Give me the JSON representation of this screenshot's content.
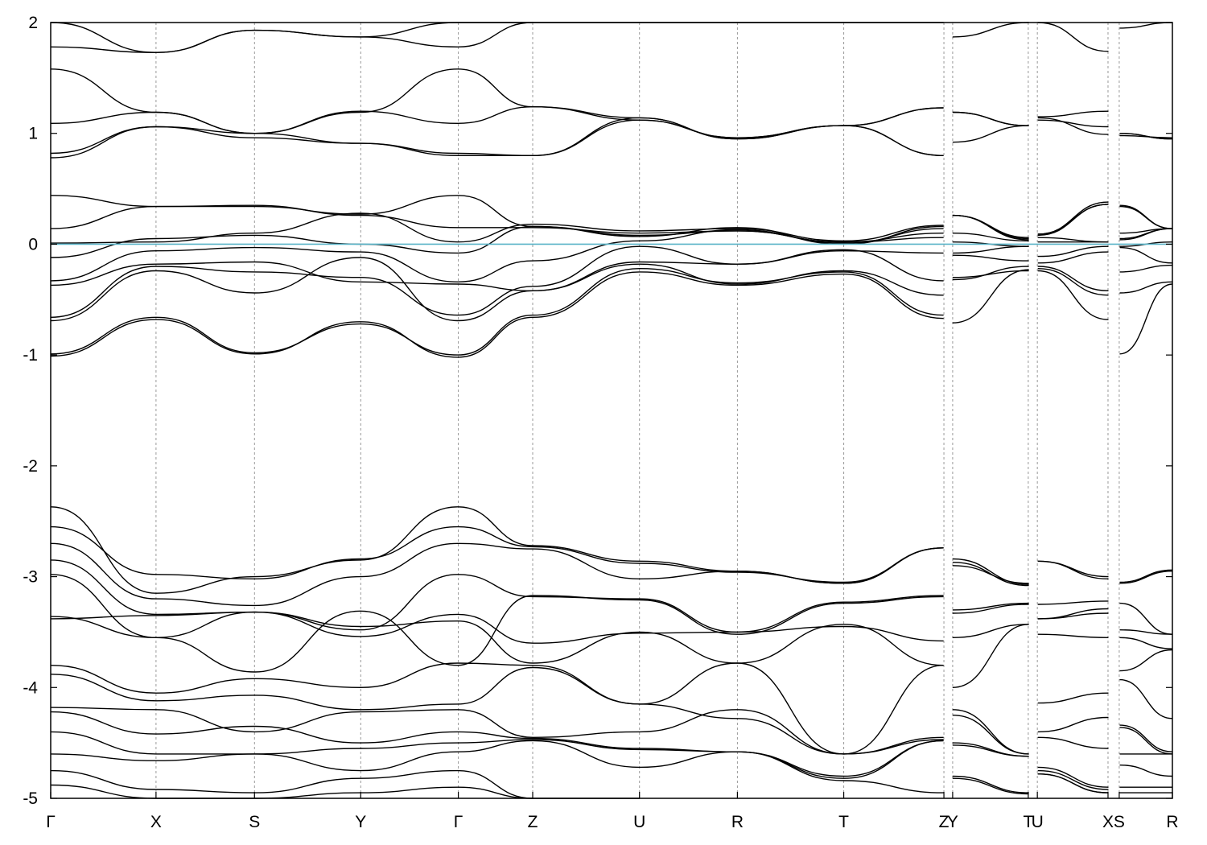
{
  "chart_data": {
    "type": "line",
    "title": "",
    "xlabel": "",
    "ylabel": "",
    "ylim": [
      -5,
      2
    ],
    "y_ticks": [
      "2",
      "1",
      "0",
      "-1",
      "-2",
      "-3",
      "-4",
      "-5"
    ],
    "k_path_labels": [
      "Γ",
      "X",
      "S",
      "Y",
      "Γ",
      "Z",
      "U",
      "R",
      "T",
      "Z",
      "Y",
      "T",
      "U",
      "X",
      "S",
      "R"
    ],
    "k_positions": [
      0,
      0.0939,
      0.1817,
      0.2764,
      0.3634,
      0.4297,
      0.5249,
      0.6122,
      0.707,
      0.7963,
      0.8041,
      0.8715,
      0.8796,
      0.9426,
      0.9526,
      1.0
    ],
    "discontinuities": [
      0.7963,
      0.8715,
      0.9426
    ],
    "fermi_level": 0,
    "fermi_color": "#5ab4c8",
    "grid": "vertical dashed at high-symmetry points",
    "series": [
      {
        "x": [
          0,
          0.094,
          0.182,
          0.276,
          0.363,
          0.43,
          0.525,
          0.612,
          0.707,
          0.796,
          0.804,
          0.872,
          0.88,
          0.943,
          0.953,
          1
        ],
        "values": [
          -1.01,
          -0.68,
          -0.99,
          -0.7,
          -1.02,
          -0.66,
          -0.25,
          -0.37,
          -0.27,
          -0.67,
          -0.71,
          -0.23,
          -0.24,
          -0.68,
          -0.99,
          -0.36
        ]
      },
      {
        "x": [
          0,
          0.094,
          0.182,
          0.276,
          0.363,
          0.43,
          0.525,
          0.612,
          0.707,
          0.796,
          0.804,
          0.872,
          0.88,
          0.943,
          0.953,
          1
        ],
        "values": [
          -0.99,
          -0.66,
          -0.98,
          -0.72,
          -1.0,
          -0.64,
          -0.22,
          -0.35,
          -0.25,
          -0.64,
          -0.32,
          -0.2,
          -0.22,
          -0.46,
          -0.44,
          -0.34
        ]
      },
      {
        "x": [
          0,
          0.094,
          0.182,
          0.276,
          0.363,
          0.43,
          0.525,
          0.612,
          0.707,
          0.796,
          0.804,
          0.872,
          0.88,
          0.943,
          0.953,
          1
        ],
        "values": [
          -0.69,
          -0.24,
          -0.44,
          -0.12,
          -0.69,
          -0.42,
          -0.18,
          -0.36,
          -0.24,
          -0.46,
          -0.3,
          -0.24,
          -0.2,
          -0.42,
          -0.25,
          -0.19
        ]
      },
      {
        "x": [
          0,
          0.094,
          0.182,
          0.276,
          0.363,
          0.43,
          0.525,
          0.612,
          0.707,
          0.796,
          0.804,
          0.872,
          0.88,
          0.943,
          0.953,
          1
        ],
        "values": [
          -0.66,
          -0.2,
          -0.25,
          -0.3,
          -0.64,
          -0.38,
          -0.02,
          -0.18,
          -0.05,
          -0.33,
          -0.1,
          -0.15,
          -0.17,
          -0.07,
          -0.03,
          -0.17
        ]
      },
      {
        "x": [
          0,
          0.094,
          0.182,
          0.276,
          0.363,
          0.43,
          0.525,
          0.612,
          0.707,
          0.796,
          0.804,
          0.872,
          0.88,
          0.943,
          0.953,
          1
        ],
        "values": [
          -0.37,
          -0.18,
          -0.16,
          -0.34,
          -0.36,
          -0.42,
          -0.16,
          -0.18,
          -0.06,
          -0.08,
          -0.08,
          -0.02,
          -0.11,
          -0.02,
          -0.02,
          0.02
        ]
      },
      {
        "x": [
          0,
          0.094,
          0.182,
          0.276,
          0.363,
          0.43,
          0.525,
          0.612,
          0.707,
          0.796,
          0.804,
          0.872,
          0.88,
          0.943,
          0.953,
          1
        ],
        "values": [
          -0.33,
          -0.06,
          -0.03,
          -0.07,
          -0.34,
          -0.15,
          0.03,
          0.13,
          0.01,
          0.14,
          0.02,
          -0.02,
          0.02,
          0.02,
          0.04,
          0.14
        ]
      },
      {
        "x": [
          0,
          0.094,
          0.182,
          0.276,
          0.363,
          0.43,
          0.525,
          0.612,
          0.707,
          0.796,
          0.804,
          0.872,
          0.88,
          0.943,
          0.953,
          1
        ],
        "values": [
          -0.12,
          0.05,
          0.08,
          0.0,
          -0.08,
          0.16,
          0.07,
          0.15,
          0.0,
          0.16,
          0.26,
          0.06,
          0.09,
          0.36,
          0.1,
          0.14
        ]
      },
      {
        "x": [
          0,
          0.094,
          0.182,
          0.276,
          0.363,
          0.43,
          0.525,
          0.612,
          0.707,
          0.796,
          0.804,
          0.872,
          0.88,
          0.943,
          0.953,
          1
        ],
        "values": [
          0.01,
          0.02,
          0.1,
          0.28,
          0.02,
          0.18,
          0.12,
          0.14,
          0.03,
          0.17,
          0.26,
          0.05,
          0.09,
          0.38,
          0.34,
          0.14
        ]
      },
      {
        "x": [
          0,
          0.094,
          0.182,
          0.276,
          0.363,
          0.43,
          0.525,
          0.612,
          0.707,
          0.796,
          0.804,
          0.872,
          0.88,
          0.943,
          0.953,
          1
        ],
        "values": [
          0.14,
          0.34,
          0.35,
          0.26,
          0.15,
          0.15,
          0.1,
          0.12,
          0.02,
          0.06,
          0.26,
          0.04,
          0.08,
          0.36,
          0.35,
          0.14
        ]
      },
      {
        "x": [
          0,
          0.094,
          0.182,
          0.276,
          0.363,
          0.43,
          0.525,
          0.612,
          0.707,
          0.796,
          0.804,
          0.872,
          0.88,
          0.943,
          0.953,
          1
        ],
        "values": [
          0.44,
          0.34,
          0.34,
          0.27,
          0.44,
          0.16,
          0.08,
          0.12,
          0.02,
          0.1,
          0.1,
          0.03,
          0.06,
          0.02,
          0.05,
          0.14
        ]
      },
      {
        "x": [
          0,
          0.094,
          0.182,
          0.276,
          0.363,
          0.43,
          0.525,
          0.612,
          0.707,
          0.796,
          0.804,
          0.872,
          0.88,
          0.943,
          0.953,
          1
        ],
        "values": [
          0.78,
          1.06,
          1.0,
          0.91,
          0.8,
          0.8,
          1.14,
          0.95,
          1.07,
          0.8,
          0.92,
          1.07,
          1.14,
          0.99,
          1.0,
          0.95
        ]
      },
      {
        "x": [
          0,
          0.094,
          0.182,
          0.276,
          0.363,
          0.43,
          0.525,
          0.612,
          0.707,
          0.796,
          0.804,
          0.872,
          0.88,
          0.943,
          0.953,
          1
        ],
        "values": [
          0.82,
          1.06,
          0.96,
          0.91,
          0.82,
          0.8,
          1.12,
          0.96,
          1.07,
          0.8,
          1.19,
          1.07,
          1.15,
          1.2,
          0.98,
          0.96
        ]
      },
      {
        "x": [
          0,
          0.094,
          0.182,
          0.276,
          0.363,
          0.43,
          0.525,
          0.612,
          0.707,
          0.796,
          0.804,
          0.872,
          0.88,
          0.943,
          0.953,
          1
        ],
        "values": [
          1.09,
          1.19,
          1.0,
          1.2,
          1.09,
          1.24,
          1.14,
          0.95,
          1.07,
          1.23,
          1.19,
          1.07,
          1.12,
          1.06,
          1.0,
          0.95
        ]
      },
      {
        "x": [
          0,
          0.094,
          0.182,
          0.276,
          0.363,
          0.43,
          0.525,
          0.612,
          0.707,
          0.796,
          0.804,
          0.872,
          0.88,
          0.943,
          0.953,
          1
        ],
        "values": [
          1.58,
          1.19,
          1.0,
          1.19,
          1.58,
          1.24,
          1.12,
          0.96,
          1.07,
          1.23,
          1.87,
          2.0,
          2.0,
          1.74,
          1.95,
          2.0
        ]
      },
      {
        "x": [
          0,
          0.094,
          0.182,
          0.276,
          0.363,
          0.43,
          0.525,
          0.612,
          0.707,
          0.796
        ],
        "values": [
          1.78,
          1.73,
          1.93,
          1.87,
          1.78,
          2.0,
          2.0,
          2.0,
          2.0,
          2.0
        ]
      },
      {
        "x": [
          0,
          0.094,
          0.182,
          0.276,
          0.363,
          0.43
        ],
        "values": [
          2.0,
          1.73,
          1.93,
          1.87,
          2.0,
          2.0
        ]
      },
      {
        "x": [
          0,
          0.094,
          0.182,
          0.276,
          0.363,
          0.43,
          0.525,
          0.612,
          0.707,
          0.796,
          0.804,
          0.872,
          0.88,
          0.943,
          0.953,
          1
        ],
        "values": [
          -2.37,
          -3.15,
          -3.0,
          -2.85,
          -2.37,
          -2.72,
          -2.86,
          -2.95,
          -3.06,
          -2.74,
          -2.84,
          -3.07,
          -2.86,
          -3.0,
          -3.05,
          -2.94
        ]
      },
      {
        "x": [
          0,
          0.094,
          0.182,
          0.276,
          0.363,
          0.43,
          0.525,
          0.612,
          0.707,
          0.796,
          0.804,
          0.872,
          0.88,
          0.943,
          0.953,
          1
        ],
        "values": [
          -2.55,
          -2.98,
          -3.02,
          -2.84,
          -2.55,
          -2.73,
          -2.88,
          -2.96,
          -3.05,
          -2.74,
          -2.87,
          -3.08,
          -2.86,
          -3.02,
          -3.06,
          -2.95
        ]
      },
      {
        "x": [
          0,
          0.094,
          0.182,
          0.276,
          0.363,
          0.43,
          0.525,
          0.612,
          0.707,
          0.796,
          0.804,
          0.872,
          0.88,
          0.943,
          0.953,
          1
        ],
        "values": [
          -2.7,
          -3.2,
          -3.26,
          -3.0,
          -2.7,
          -2.75,
          -3.02,
          -2.95,
          -3.06,
          -2.74,
          -2.9,
          -3.06,
          -3.25,
          -3.22,
          -3.24,
          -3.52
        ]
      },
      {
        "x": [
          0,
          0.094,
          0.182,
          0.276,
          0.363,
          0.43,
          0.525,
          0.612,
          0.707,
          0.796,
          0.804,
          0.872,
          0.88,
          0.943,
          0.953,
          1
        ],
        "values": [
          -2.85,
          -3.34,
          -3.32,
          -3.48,
          -2.98,
          -3.18,
          -3.2,
          -3.5,
          -3.23,
          -3.17,
          -3.3,
          -3.24,
          -3.38,
          -3.29,
          -3.48,
          -3.52
        ]
      },
      {
        "x": [
          0,
          0.094,
          0.182,
          0.276,
          0.363,
          0.43,
          0.525,
          0.612,
          0.707,
          0.796,
          0.804,
          0.872,
          0.88,
          0.943,
          0.953,
          1
        ],
        "values": [
          -2.98,
          -3.55,
          -3.86,
          -3.31,
          -3.8,
          -3.17,
          -3.21,
          -3.52,
          -3.24,
          -3.18,
          -3.33,
          -3.25,
          -3.38,
          -3.33,
          -3.55,
          -3.65
        ]
      },
      {
        "x": [
          0,
          0.094,
          0.182,
          0.276,
          0.363,
          0.43,
          0.525,
          0.612,
          0.707,
          0.796,
          0.804,
          0.872,
          0.88,
          0.943,
          0.953,
          1
        ],
        "values": [
          -3.36,
          -3.55,
          -3.32,
          -3.54,
          -3.34,
          -3.6,
          -3.51,
          -3.5,
          -3.45,
          -3.58,
          -3.55,
          -3.43,
          -3.52,
          -3.55,
          -3.85,
          -3.66
        ]
      },
      {
        "x": [
          0,
          0.094,
          0.182,
          0.276,
          0.363,
          0.43,
          0.525,
          0.612,
          0.707,
          0.796,
          0.804,
          0.872,
          0.88,
          0.943,
          0.953,
          1
        ],
        "values": [
          -3.38,
          -3.35,
          -3.32,
          -3.45,
          -3.4,
          -3.78,
          -3.5,
          -3.78,
          -3.43,
          -3.8,
          -4.0,
          -3.43,
          -4.14,
          -4.05,
          -3.93,
          -4.28
        ]
      },
      {
        "x": [
          0,
          0.094,
          0.182,
          0.276,
          0.363,
          0.43,
          0.525,
          0.612,
          0.707,
          0.796,
          0.804,
          0.872,
          0.88,
          0.943,
          0.953,
          1
        ],
        "values": [
          -3.8,
          -4.05,
          -3.92,
          -4.0,
          -3.78,
          -3.8,
          -4.15,
          -3.78,
          -4.6,
          -3.8,
          -4.2,
          -4.6,
          -4.4,
          -4.27,
          -4.34,
          -4.58
        ]
      },
      {
        "x": [
          0,
          0.094,
          0.182,
          0.276,
          0.363,
          0.43,
          0.525,
          0.612,
          0.707,
          0.796,
          0.804,
          0.872,
          0.88,
          0.943,
          0.953,
          1
        ],
        "values": [
          -3.88,
          -4.12,
          -4.07,
          -4.2,
          -4.15,
          -3.82,
          -4.15,
          -4.28,
          -4.6,
          -4.45,
          -4.25,
          -4.6,
          -4.45,
          -4.55,
          -4.36,
          -4.6
        ]
      },
      {
        "x": [
          0,
          0.094,
          0.182,
          0.276,
          0.363,
          0.43,
          0.525,
          0.612,
          0.707,
          0.796,
          0.804,
          0.872,
          0.88,
          0.943,
          0.953,
          1
        ],
        "values": [
          -4.18,
          -4.2,
          -4.4,
          -4.22,
          -4.2,
          -4.45,
          -4.4,
          -4.2,
          -4.6,
          -4.47,
          -4.5,
          -4.62,
          -4.72,
          -4.9,
          -4.6,
          -4.6
        ]
      },
      {
        "x": [
          0,
          0.094,
          0.182,
          0.276,
          0.363,
          0.43,
          0.525,
          0.612,
          0.707,
          0.796,
          0.804,
          0.872,
          0.88,
          0.943,
          0.953,
          1
        ],
        "values": [
          -4.22,
          -4.42,
          -4.35,
          -4.5,
          -4.4,
          -4.46,
          -4.55,
          -4.58,
          -4.8,
          -4.48,
          -4.52,
          -4.62,
          -4.75,
          -4.92,
          -4.7,
          -4.8
        ]
      },
      {
        "x": [
          0,
          0.094,
          0.182,
          0.276,
          0.363,
          0.43,
          0.525,
          0.612,
          0.707,
          0.796,
          0.804,
          0.872,
          0.88,
          0.943,
          0.953,
          1
        ],
        "values": [
          -4.4,
          -4.6,
          -4.6,
          -4.55,
          -4.5,
          -4.47,
          -4.56,
          -4.58,
          -4.82,
          -4.48,
          -4.8,
          -4.95,
          -4.78,
          -4.95,
          -4.9,
          -4.9
        ]
      },
      {
        "x": [
          0,
          0.094,
          0.182,
          0.276,
          0.363,
          0.43,
          0.525,
          0.612,
          0.707,
          0.796,
          0.804,
          0.872,
          0.88,
          0.943,
          0.953,
          1
        ],
        "values": [
          -4.6,
          -4.66,
          -4.6,
          -4.75,
          -4.58,
          -4.48,
          -4.72,
          -4.58,
          -4.84,
          -4.95,
          -4.82,
          -4.96,
          -4.78,
          -4.95,
          -4.95,
          -4.95
        ]
      },
      {
        "x": [
          0,
          0.094,
          0.182,
          0.276,
          0.363,
          0.43,
          0.525
        ],
        "values": [
          -4.75,
          -4.92,
          -4.95,
          -4.82,
          -4.75,
          -5.0,
          -5.0
        ]
      },
      {
        "x": [
          0,
          0.094,
          0.182,
          0.276,
          0.363,
          0.43
        ],
        "values": [
          -4.88,
          -5.0,
          -5.0,
          -4.95,
          -4.9,
          -5.0
        ]
      }
    ]
  }
}
